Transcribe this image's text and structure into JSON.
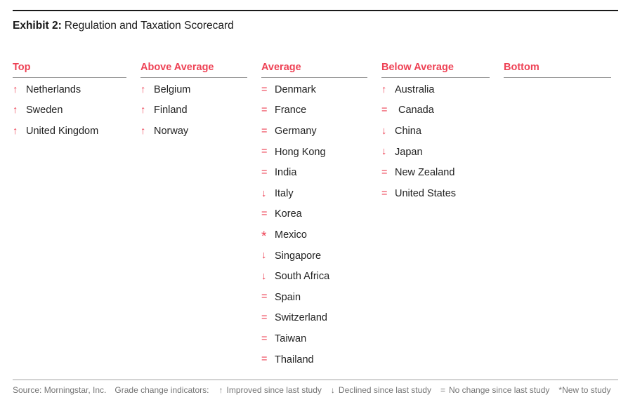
{
  "title": {
    "label": "Exhibit 2:",
    "text": "Regulation and Taxation Scorecard"
  },
  "indicator_symbols": {
    "improved": "↑",
    "declined": "↓",
    "no_change": "=",
    "new": "*"
  },
  "colors": {
    "accent_red": "#EE4255",
    "text_dark": "#222222",
    "footer_gray": "#757575",
    "rule_gray": "#A2A2A2",
    "title_black": "#1A1A1A"
  },
  "scorecard": {
    "columns": [
      {
        "header": "Top",
        "entries": [
          {
            "indicator": "improved",
            "name": "Netherlands"
          },
          {
            "indicator": "improved",
            "name": "Sweden"
          },
          {
            "indicator": "improved",
            "name": "United Kingdom"
          }
        ]
      },
      {
        "header": "Above Average",
        "entries": [
          {
            "indicator": "improved",
            "name": "Belgium"
          },
          {
            "indicator": "improved",
            "name": "Finland"
          },
          {
            "indicator": "improved",
            "name": "Norway"
          }
        ]
      },
      {
        "header": "Average",
        "entries": [
          {
            "indicator": "no_change",
            "name": "Denmark"
          },
          {
            "indicator": "no_change",
            "name": "France"
          },
          {
            "indicator": "no_change",
            "name": "Germany"
          },
          {
            "indicator": "no_change",
            "name": "Hong Kong"
          },
          {
            "indicator": "no_change",
            "name": "India"
          },
          {
            "indicator": "declined",
            "name": "Italy"
          },
          {
            "indicator": "no_change",
            "name": "Korea"
          },
          {
            "indicator": "new",
            "name": "Mexico"
          },
          {
            "indicator": "declined",
            "name": "Singapore"
          },
          {
            "indicator": "declined",
            "name": "South Africa"
          },
          {
            "indicator": "no_change",
            "name": "Spain"
          },
          {
            "indicator": "no_change",
            "name": "Switzerland"
          },
          {
            "indicator": "no_change",
            "name": "Taiwan"
          },
          {
            "indicator": "no_change",
            "name": "Thailand"
          }
        ]
      },
      {
        "header": "Below Average",
        "entries": [
          {
            "indicator": "improved",
            "name": "Australia"
          },
          {
            "indicator": "no_change",
            "name": "Canada",
            "indent": true
          },
          {
            "indicator": "declined",
            "name": "China"
          },
          {
            "indicator": "declined",
            "name": "Japan"
          },
          {
            "indicator": "no_change",
            "name": "New Zealand"
          },
          {
            "indicator": "no_change",
            "name": "United States"
          }
        ]
      },
      {
        "header": "Bottom",
        "entries": []
      }
    ]
  },
  "footer": {
    "source": "Source: Morningstar, Inc.",
    "legend_label": "Grade change indicators:",
    "legend": [
      {
        "symbol": "↑",
        "text": "Improved since last study"
      },
      {
        "symbol": "↓",
        "text": "Declined since last study"
      },
      {
        "symbol": "=",
        "text": "No change since last study"
      },
      {
        "symbol": "*",
        "text": "New to study",
        "tight": true
      }
    ]
  }
}
